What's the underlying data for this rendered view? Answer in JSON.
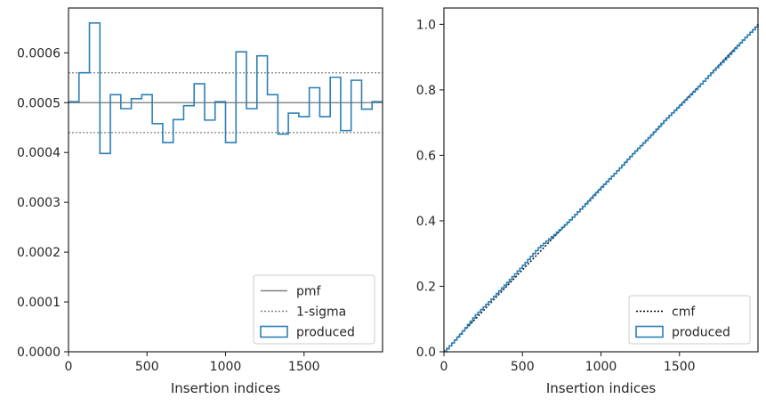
{
  "chart_data": [
    {
      "type": "step",
      "xlabel": "Insertion indices",
      "ylabel": "",
      "xlim": [
        0,
        2000
      ],
      "ylim": [
        0,
        0.00069
      ],
      "xticks": [
        0,
        500,
        1000,
        1500
      ],
      "xtick_labels": [
        "0",
        "500",
        "1000",
        "1500"
      ],
      "yticks": [
        0,
        0.0001,
        0.0002,
        0.0003,
        0.0004,
        0.0005,
        0.0006
      ],
      "ytick_labels": [
        "0.0000",
        "0.0001",
        "0.0002",
        "0.0003",
        "0.0004",
        "0.0005",
        "0.0006"
      ],
      "grid": false,
      "legend_position": "lower-right",
      "series": [
        {
          "name": "pmf",
          "kind": "hline",
          "y": 0.0005,
          "color": "#808080",
          "style": "solid"
        },
        {
          "name": "1-sigma",
          "kind": "hlines",
          "y": [
            0.00044,
            0.00056
          ],
          "color": "#808080",
          "style": "dotted"
        },
        {
          "name": "produced",
          "kind": "step-hist",
          "color": "#2c7fb8",
          "bin_edges": [
            0,
            66.7,
            133.3,
            200,
            266.7,
            333.3,
            400,
            466.7,
            533.3,
            600,
            666.7,
            733.3,
            800,
            866.7,
            933.3,
            1000,
            1066.7,
            1133.3,
            1200,
            1266.7,
            1333.3,
            1400,
            1466.7,
            1533.3,
            1600,
            1666.7,
            1733.3,
            1800,
            1866.7,
            1933.3,
            2000
          ],
          "values": [
            0.000502,
            0.00056,
            0.00066,
            0.000398,
            0.000516,
            0.000488,
            0.000508,
            0.000516,
            0.000458,
            0.00042,
            0.000466,
            0.000494,
            0.000538,
            0.000465,
            0.000502,
            0.00042,
            0.000602,
            0.000488,
            0.000594,
            0.000516,
            0.000437,
            0.000479,
            0.000472,
            0.00053,
            0.000472,
            0.000551,
            0.000444,
            0.000545,
            0.000487,
            0.000502
          ]
        }
      ]
    },
    {
      "type": "line",
      "xlabel": "Insertion indices",
      "ylabel": "",
      "xlim": [
        0,
        2000
      ],
      "ylim": [
        0,
        1.05
      ],
      "xticks": [
        0,
        500,
        1000,
        1500
      ],
      "xtick_labels": [
        "0",
        "500",
        "1000",
        "1500"
      ],
      "yticks": [
        0,
        0.2,
        0.4,
        0.6,
        0.8,
        1.0
      ],
      "ytick_labels": [
        "0.0",
        "0.2",
        "0.4",
        "0.6",
        "0.8",
        "1.0"
      ],
      "grid": false,
      "legend_position": "lower-right",
      "series": [
        {
          "name": "cmf",
          "kind": "line",
          "color": "#000000",
          "style": "dotted",
          "x": [
            0,
            2000
          ],
          "y": [
            0,
            1.0
          ]
        },
        {
          "name": "produced",
          "kind": "step-cumulative",
          "color": "#2c7fb8",
          "x": [
            0,
            100,
            200,
            300,
            400,
            500,
            600,
            700,
            800,
            900,
            1000,
            1100,
            1200,
            1300,
            1400,
            1500,
            1600,
            1700,
            1800,
            1900,
            2000
          ],
          "y": [
            0,
            0.054,
            0.113,
            0.161,
            0.212,
            0.264,
            0.318,
            0.358,
            0.403,
            0.452,
            0.503,
            0.553,
            0.605,
            0.654,
            0.706,
            0.753,
            0.801,
            0.852,
            0.9,
            0.952,
            1.0
          ]
        }
      ]
    }
  ]
}
